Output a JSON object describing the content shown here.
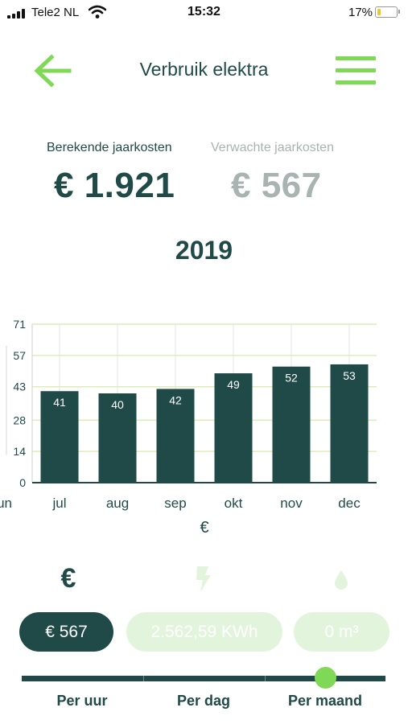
{
  "status_bar": {
    "carrier": "Tele2 NL",
    "time": "15:32",
    "battery_percent": "17%",
    "battery_level": 0.17
  },
  "header": {
    "title": "Verbruik elektra",
    "back_icon": "arrow-left-icon",
    "menu_icon": "hamburger-menu-icon",
    "accent_color": "#7fd957"
  },
  "costs": {
    "calculated_label": "Berekende jaarkosten",
    "calculated_value": "€ 1.921",
    "expected_label": "Verwachte jaarkosten",
    "expected_value": "€ 567"
  },
  "year": "2019",
  "chart_data": {
    "type": "bar",
    "categories": [
      "jul",
      "aug",
      "sep",
      "okt",
      "nov",
      "dec"
    ],
    "values": [
      41,
      40,
      42,
      49,
      52,
      53
    ],
    "data_labels": [
      "41",
      "40",
      "42",
      "49",
      "52",
      "53"
    ],
    "y_ticks": [
      "0",
      "14",
      "28",
      "43",
      "57",
      "71"
    ],
    "y_tick_values": [
      0,
      14,
      28,
      43,
      57,
      71
    ],
    "ylim": [
      0,
      71
    ],
    "clipped_left_label": "jun",
    "xlabel": "€",
    "ylabel": "",
    "title": "",
    "grid": true,
    "bar_color": "#1f4a47",
    "grid_color": "#d9efb7"
  },
  "type_icons": {
    "euro": "€",
    "electricity_icon": "bolt-icon",
    "gas_icon": "drop-icon"
  },
  "pills": {
    "euro": "€ 567",
    "kwh": "2.562,59 KWh",
    "gas": "0 m³"
  },
  "period": {
    "options": [
      "Per uur",
      "Per dag",
      "Per maand"
    ],
    "selected": "Per maand"
  },
  "colors": {
    "primary": "#1f4a47",
    "accent": "#7fd957",
    "muted": "#a8b3b2",
    "inactive_pill": "#e3f4dc"
  }
}
